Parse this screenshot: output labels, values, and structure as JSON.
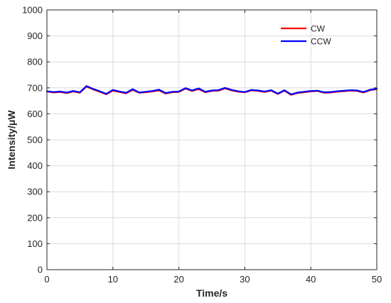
{
  "chart_data": {
    "type": "line",
    "xlabel": "Time/s",
    "ylabel": "Intensity/μW",
    "xlim": [
      0,
      50
    ],
    "ylim": [
      0,
      1000
    ],
    "xticks": [
      0,
      10,
      20,
      30,
      40,
      50
    ],
    "yticks": [
      0,
      100,
      200,
      300,
      400,
      500,
      600,
      700,
      800,
      900,
      1000
    ],
    "grid": true,
    "legend_position": "top-right",
    "series": [
      {
        "name": "CW",
        "color": "#ff0000",
        "x": [
          0,
          1,
          2,
          3,
          4,
          5,
          6,
          7,
          8,
          9,
          10,
          11,
          12,
          13,
          14,
          15,
          16,
          17,
          18,
          19,
          20,
          21,
          22,
          23,
          24,
          25,
          26,
          27,
          28,
          29,
          30,
          31,
          32,
          33,
          34,
          35,
          36,
          37,
          38,
          39,
          40,
          41,
          42,
          43,
          44,
          45,
          46,
          47,
          48,
          49,
          50
        ],
        "values": [
          686,
          682,
          684,
          680,
          686,
          681,
          705,
          694,
          685,
          675,
          689,
          684,
          679,
          692,
          681,
          683,
          686,
          690,
          678,
          683,
          684,
          697,
          688,
          695,
          683,
          688,
          689,
          698,
          690,
          685,
          683,
          690,
          688,
          684,
          689,
          676,
          689,
          673,
          680,
          683,
          686,
          688,
          681,
          682,
          685,
          687,
          689,
          688,
          682,
          691,
          695
        ]
      },
      {
        "name": "CCW",
        "color": "#0000ff",
        "x": [
          0,
          1,
          2,
          3,
          4,
          5,
          6,
          7,
          8,
          9,
          10,
          11,
          12,
          13,
          14,
          15,
          16,
          17,
          18,
          19,
          20,
          21,
          22,
          23,
          24,
          25,
          26,
          27,
          28,
          29,
          30,
          31,
          32,
          33,
          34,
          35,
          36,
          37,
          38,
          39,
          40,
          41,
          42,
          43,
          44,
          45,
          46,
          47,
          48,
          49,
          50
        ],
        "values": [
          687,
          684,
          686,
          682,
          688,
          683,
          707,
          696,
          687,
          677,
          692,
          686,
          681,
          695,
          682,
          685,
          688,
          693,
          680,
          685,
          686,
          699,
          690,
          698,
          685,
          690,
          691,
          700,
          692,
          687,
          684,
          692,
          690,
          686,
          691,
          678,
          691,
          675,
          682,
          685,
          688,
          689,
          683,
          684,
          687,
          689,
          691,
          690,
          684,
          693,
          697
        ]
      }
    ]
  }
}
